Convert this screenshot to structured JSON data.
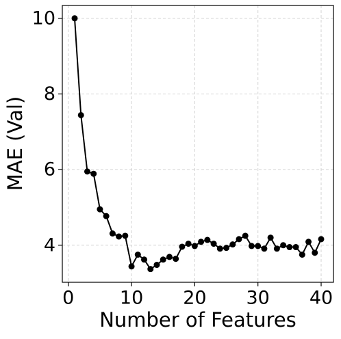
{
  "chart_data": {
    "type": "line",
    "xlabel": "Number of Features",
    "ylabel": "MAE (Val)",
    "x": [
      1,
      2,
      3,
      4,
      5,
      6,
      7,
      8,
      9,
      10,
      11,
      12,
      13,
      14,
      15,
      16,
      17,
      18,
      19,
      20,
      21,
      22,
      23,
      24,
      25,
      26,
      27,
      28,
      29,
      30,
      31,
      32,
      33,
      34,
      35,
      36,
      37,
      38,
      39,
      40
    ],
    "series": [
      {
        "name": "MAE",
        "color": "#000000",
        "values": [
          10.0,
          7.44,
          5.95,
          5.89,
          4.95,
          4.77,
          4.31,
          4.23,
          4.25,
          3.44,
          3.75,
          3.62,
          3.37,
          3.48,
          3.62,
          3.69,
          3.64,
          3.96,
          4.04,
          3.98,
          4.09,
          4.14,
          4.04,
          3.91,
          3.93,
          4.02,
          4.16,
          4.25,
          3.98,
          3.98,
          3.91,
          4.2,
          3.91,
          4.0,
          3.95,
          3.95,
          3.75,
          4.09,
          3.8,
          4.16
        ]
      }
    ],
    "xlim": [
      -0.95,
      41.95
    ],
    "ylim": [
      3.02,
      10.34
    ],
    "xticks": [
      0,
      10,
      20,
      30,
      40
    ],
    "yticks": [
      4,
      6,
      8,
      10
    ],
    "grid": true
  }
}
